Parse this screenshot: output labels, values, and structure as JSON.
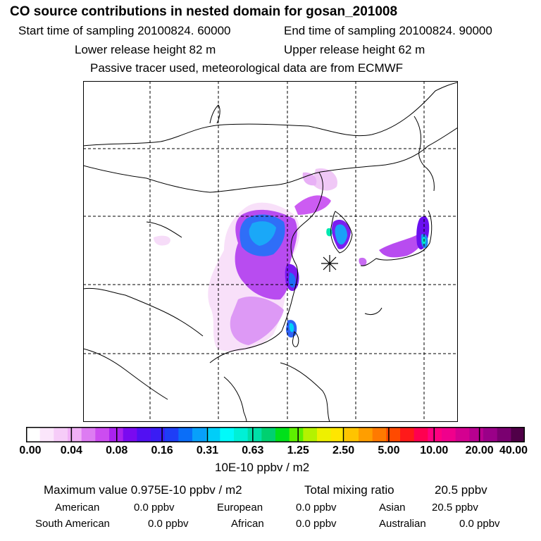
{
  "header": {
    "title": "CO  source contributions in nested domain for gosan_201008",
    "start_time": "Start time of sampling 20100824. 60000",
    "end_time": "End time of sampling 20100824. 90000",
    "lower_release": "Lower release height   82 m",
    "upper_release": "Upper release height   62 m",
    "tracer_note": "Passive tracer used, meteorological data are from ECMWF"
  },
  "colorbar": {
    "ticks": [
      "0.00",
      "0.04",
      "0.08",
      "0.16",
      "0.31",
      "0.63",
      "1.25",
      "2.50",
      "5.00",
      "10.00",
      "20.00",
      "40.00"
    ],
    "units": "10E-10 ppbv / m2",
    "colors": [
      "#ffffff",
      "#fbe6fb",
      "#f6ccf8",
      "#f0b0f6",
      "#dd7cf2",
      "#cc4cf0",
      "#aa22ee",
      "#7a0af0",
      "#5210f2",
      "#3a1cf4",
      "#1e3ef6",
      "#0a6ef8",
      "#08a0fa",
      "#00cef8",
      "#00fafa",
      "#00f0d6",
      "#00e0a8",
      "#00d070",
      "#00e01a",
      "#5ef000",
      "#b4f200",
      "#eef000",
      "#ffe600",
      "#ffc400",
      "#ff9e00",
      "#ff7a00",
      "#ff4a00",
      "#ff1a1a",
      "#ff0050",
      "#ff0080",
      "#f0008c",
      "#d40090",
      "#b80090",
      "#9a0088",
      "#7a0070",
      "#500048"
    ]
  },
  "summary": {
    "max_value": "Maximum value  0.975E-10 ppbv / m2",
    "total_label": "Total mixing ratio",
    "total_value": "20.5 ppbv"
  },
  "regions": [
    {
      "name": "American",
      "value": "0.0 ppbv"
    },
    {
      "name": "European",
      "value": "0.0 ppbv"
    },
    {
      "name": "Asian",
      "value": "20.5 ppbv"
    },
    {
      "name": "South American",
      "value": "0.0 ppbv"
    },
    {
      "name": "African",
      "value": "0.0 ppbv"
    },
    {
      "name": "Australian",
      "value": "0.0 ppbv"
    }
  ],
  "map": {
    "receptor": "Gosan",
    "grid_lines": true
  }
}
